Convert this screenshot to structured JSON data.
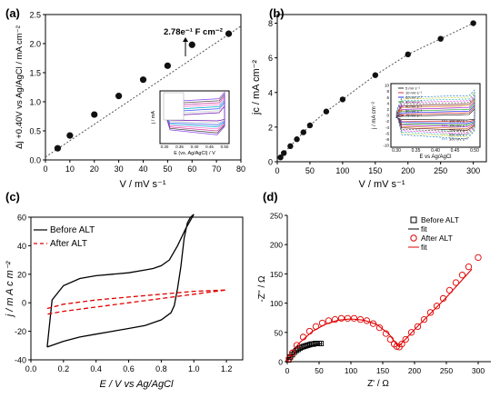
{
  "chart_data": [
    {
      "panel": "(a)",
      "type": "scatter",
      "xlabel": "V / mV s⁻¹",
      "ylabel": "Δj +0.40V vs Ag/AgCl / mA cm⁻²",
      "xlim": [
        0,
        80
      ],
      "ylim": [
        0,
        2.5
      ],
      "xticks": [
        "0",
        "10",
        "20",
        "30",
        "40",
        "50",
        "60",
        "70",
        "80"
      ],
      "yticks": [
        "0.0",
        "0.5",
        "1.0",
        "1.5",
        "2.0",
        "2.5"
      ],
      "annotation": "2.78e⁻¹ F cm⁻²",
      "series": [
        {
          "x": [
            5,
            10,
            20,
            30,
            40,
            50,
            60,
            75
          ],
          "y": [
            0.2,
            0.42,
            0.78,
            1.1,
            1.38,
            1.62,
            1.98,
            2.17
          ]
        }
      ],
      "fit": {
        "x": [
          0,
          80
        ],
        "y": [
          0.05,
          2.3
        ]
      },
      "inset": {
        "xlabel": "E (vs. Ag/AgCl) / V",
        "ylabel": "j / mA",
        "xticks": [
          "0.30",
          "0.35",
          "0.40",
          "0.45",
          "0.50"
        ]
      }
    },
    {
      "panel": "(b)",
      "type": "scatter",
      "xlabel": "V / mV s⁻¹",
      "ylabel": "jc / mA cm⁻²",
      "xlim": [
        0,
        320
      ],
      "ylim": [
        0,
        8.5
      ],
      "xticks": [
        "0",
        "50",
        "100",
        "150",
        "200",
        "250",
        "300"
      ],
      "yticks": [
        "0",
        "2",
        "4",
        "6",
        "8"
      ],
      "series": [
        {
          "x": [
            5,
            10,
            20,
            30,
            40,
            50,
            75,
            100,
            150,
            200,
            250,
            300
          ],
          "y": [
            0.25,
            0.5,
            0.9,
            1.3,
            1.7,
            2.1,
            2.9,
            3.6,
            5.0,
            6.2,
            7.1,
            8.0
          ]
        }
      ],
      "inset": {
        "xlabel": "E vs Ag/AgCl",
        "ylabel": "j / mA cm⁻²",
        "xticks": [
          "0.30",
          "0.35",
          "0.40",
          "0.45",
          "0.50"
        ],
        "yticks": [
          "10",
          "8",
          "6",
          "4",
          "2",
          "0",
          "-2",
          "-4",
          "-6",
          "-8",
          "-10"
        ],
        "legend_left": [
          "5 mV s⁻¹",
          "10 mV s⁻¹",
          "20 mV s⁻¹",
          "30 mV s⁻¹",
          "40 mV s⁻¹",
          "50 mV s⁻¹",
          "75 mV s⁻¹"
        ],
        "legend_right": [
          "100 mV s⁻¹",
          "150 mV s⁻¹",
          "200 mV s⁻¹",
          "250 mV s⁻¹",
          "300 mV s⁻¹"
        ]
      }
    },
    {
      "panel": "(c)",
      "type": "line",
      "xlabel": "E / V vs Ag/AgCl",
      "ylabel": "j / m A c m⁻²",
      "xlim": [
        0,
        1.3
      ],
      "ylim": [
        -40,
        60
      ],
      "xticks": [
        "0.0",
        "0.2",
        "0.4",
        "0.6",
        "0.8",
        "1.0",
        "1.2"
      ],
      "yticks": [
        "-40",
        "-20",
        "0",
        "20",
        "40",
        "60"
      ],
      "legend": [
        "Before ALT",
        "After ALT"
      ],
      "series": [
        {
          "name": "Before ALT",
          "color": "#000000",
          "x": [
            0.1,
            0.13,
            0.2,
            0.3,
            0.4,
            0.5,
            0.6,
            0.7,
            0.75,
            0.8,
            0.85,
            0.9,
            0.95,
            1.0,
            0.98,
            0.96,
            0.94,
            0.92,
            0.9,
            0.88,
            0.86,
            0.8,
            0.7,
            0.6,
            0.5,
            0.4,
            0.3,
            0.2,
            0.1
          ],
          "y": [
            -31,
            2,
            12,
            17,
            19,
            20,
            21,
            23,
            24,
            26,
            30,
            40,
            52,
            62,
            60,
            56,
            45,
            25,
            10,
            -2,
            -7,
            -12,
            -16,
            -18,
            -20,
            -22,
            -24,
            -27,
            -31
          ]
        },
        {
          "name": "After ALT",
          "color": "#e00000",
          "x": [
            0.1,
            0.2,
            0.4,
            0.6,
            0.8,
            1.0,
            1.2,
            1.0,
            0.8,
            0.6,
            0.4,
            0.2,
            0.1
          ],
          "y": [
            -4,
            -1,
            2,
            4,
            6,
            8,
            9,
            6,
            3,
            0,
            -3,
            -6,
            -8
          ]
        }
      ]
    },
    {
      "panel": "(d)",
      "type": "scatter",
      "xlabel": "Z' / Ω",
      "ylabel": "-Z'' / Ω",
      "xlim": [
        0,
        320
      ],
      "ylim": [
        0,
        250
      ],
      "xticks": [
        "0",
        "50",
        "100",
        "150",
        "200",
        "250",
        "300"
      ],
      "yticks": [
        "0",
        "50",
        "100",
        "150",
        "200",
        "250"
      ],
      "legend": [
        "Before ALT",
        "fit",
        "After ALT",
        "fit"
      ],
      "series": [
        {
          "name": "Before ALT",
          "color": "#000000",
          "x": [
            2,
            5,
            8,
            11,
            14,
            17,
            20,
            23,
            26,
            29,
            32,
            35,
            38,
            41,
            44,
            47,
            50,
            53
          ],
          "y": [
            3,
            8,
            12,
            16,
            19,
            21,
            23,
            25,
            26,
            27,
            28,
            29,
            30,
            30,
            31,
            31,
            31,
            31
          ]
        },
        {
          "name": "After ALT",
          "color": "#e00000",
          "x": [
            3,
            8,
            15,
            25,
            35,
            45,
            55,
            65,
            75,
            85,
            95,
            105,
            115,
            125,
            135,
            145,
            155,
            162,
            168,
            172,
            176,
            180,
            186,
            195,
            205,
            215,
            225,
            235,
            245,
            255,
            265,
            275,
            285,
            300
          ],
          "y": [
            5,
            15,
            28,
            42,
            52,
            60,
            66,
            70,
            72,
            74,
            74,
            74,
            72,
            70,
            65,
            58,
            48,
            38,
            30,
            26,
            25,
            30,
            38,
            50,
            60,
            72,
            84,
            95,
            108,
            122,
            135,
            148,
            162,
            178
          ]
        }
      ],
      "fits": [
        {
          "color": "#000000",
          "x": [
            0,
            5,
            10,
            15,
            20,
            25,
            30,
            35,
            40,
            45,
            50,
            55
          ],
          "y": [
            0,
            8,
            13,
            17,
            20,
            23,
            25,
            27,
            28,
            29,
            30,
            31
          ]
        },
        {
          "color": "#e00000",
          "x": [
            0,
            10,
            20,
            40,
            60,
            80,
            100,
            120,
            140,
            160,
            170,
            175,
            200,
            250,
            290
          ],
          "y": [
            0,
            20,
            33,
            52,
            64,
            71,
            73,
            71,
            64,
            47,
            32,
            26,
            55,
            110,
            158
          ]
        }
      ]
    }
  ]
}
